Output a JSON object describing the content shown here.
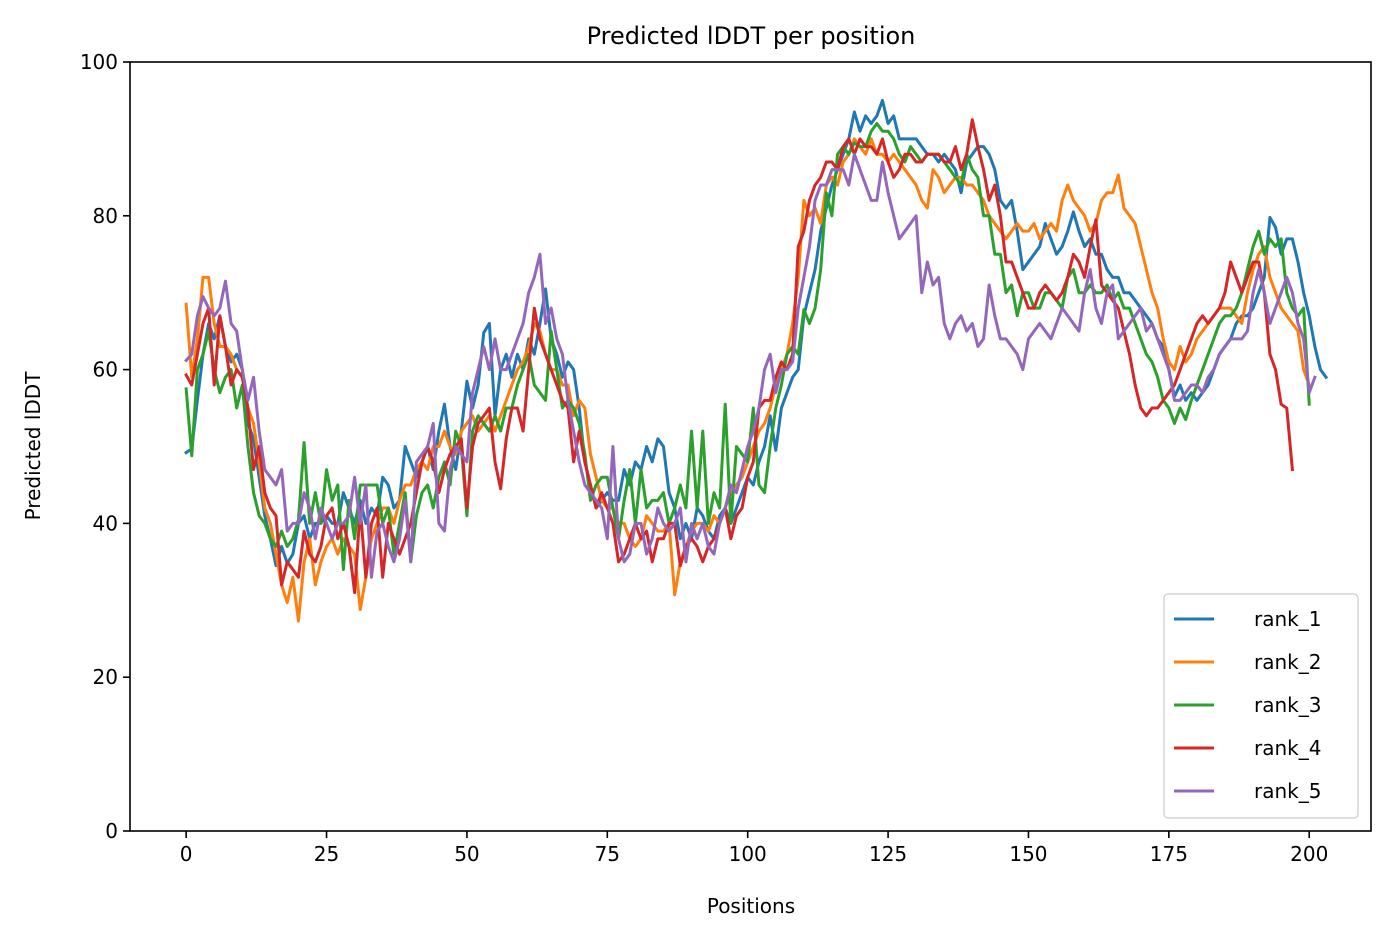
{
  "chart_data": {
    "type": "line",
    "title": "Predicted lDDT per position",
    "xlabel": "Positions",
    "ylabel": "Predicted lDDT",
    "xlim": [
      -10,
      211
    ],
    "ylim": [
      0,
      100
    ],
    "xticks": [
      0,
      25,
      50,
      75,
      100,
      125,
      150,
      175,
      200
    ],
    "yticks": [
      0,
      20,
      40,
      60,
      80,
      100
    ],
    "grid": false,
    "legend_position": "lower right",
    "x_start": 0,
    "series": [
      {
        "name": "rank_1",
        "color": "#1f77b4",
        "values": [
          49.2,
          49.7,
          56,
          62,
          66,
          64,
          67,
          63,
          61,
          62,
          60,
          53,
          51,
          46,
          41,
          38,
          34.5,
          37,
          34.8,
          36,
          40,
          41,
          38,
          40,
          40,
          41,
          40,
          40,
          44,
          42,
          40,
          43,
          40,
          42,
          41,
          46,
          45,
          42,
          43,
          50,
          48,
          46,
          48,
          50,
          47,
          52,
          55.5,
          50,
          47,
          52,
          58.5,
          55,
          58,
          64.8,
          66,
          54,
          60,
          62,
          59,
          62,
          60,
          64,
          62,
          66,
          70.5,
          64,
          62,
          59,
          61,
          60,
          55,
          48,
          45,
          42,
          43,
          44,
          43,
          43,
          47,
          45,
          48,
          47,
          50,
          48,
          51,
          50,
          44,
          42,
          38,
          40,
          38,
          42,
          41,
          39,
          38,
          41,
          42,
          40,
          42,
          44,
          46,
          45,
          48,
          50,
          54,
          49.5,
          55,
          57,
          59,
          60,
          67,
          70,
          73,
          78,
          81,
          84,
          86,
          88,
          90,
          93.5,
          91,
          93,
          92,
          93,
          95,
          92,
          93,
          90,
          90,
          90,
          90,
          89,
          88,
          88,
          87,
          88,
          87,
          86,
          83,
          87,
          88,
          89,
          89,
          88,
          86,
          82,
          81,
          82,
          78,
          73,
          74,
          75,
          76,
          79,
          77,
          75,
          76,
          78,
          80.5,
          78,
          76,
          77,
          75,
          75,
          73,
          72,
          72,
          70,
          70,
          69,
          68,
          67,
          66,
          64,
          63,
          60,
          56.5,
          58,
          56,
          57,
          56,
          57,
          58,
          60,
          62,
          63,
          64,
          66,
          67,
          67,
          68,
          70,
          72,
          79.8,
          78.5,
          75,
          77,
          77,
          74,
          70,
          67,
          63,
          60,
          59
        ]
      },
      {
        "name": "rank_2",
        "color": "#ff7f0e",
        "values": [
          68.5,
          59,
          64,
          72,
          72,
          66,
          63,
          63,
          62,
          60,
          59,
          55,
          53,
          48,
          42,
          40,
          36,
          32,
          29.7,
          33,
          27.3,
          35,
          38,
          32,
          35,
          37,
          38,
          36,
          38,
          37,
          36,
          28.8,
          33,
          38,
          40,
          42,
          42,
          40,
          43,
          45,
          45,
          47,
          48,
          47,
          50,
          50,
          52,
          50,
          49,
          52,
          53,
          54,
          52,
          53,
          54,
          52,
          54,
          56,
          58,
          60,
          61,
          63,
          66,
          65,
          62,
          60,
          60,
          58,
          58,
          54,
          56,
          55,
          49,
          46,
          43,
          42,
          42,
          40,
          40,
          38,
          37,
          38,
          41,
          40,
          39,
          39,
          40,
          30.7,
          35,
          37,
          39,
          40,
          40,
          39,
          41,
          40,
          42,
          44,
          45,
          46,
          48,
          50,
          52,
          53,
          55,
          58,
          60,
          62,
          66,
          72,
          82,
          80,
          81,
          79,
          84,
          85,
          84,
          87,
          88,
          90,
          89,
          88,
          90,
          88,
          88,
          87,
          88,
          87,
          86,
          85,
          84,
          82,
          81,
          86,
          85,
          83,
          84,
          85,
          85,
          84,
          84,
          83,
          82,
          80,
          79,
          78,
          77,
          78,
          79,
          78,
          78,
          79,
          77,
          78,
          79,
          78,
          82,
          84,
          82,
          81,
          80,
          78,
          79,
          82,
          83,
          83,
          85.3,
          81,
          80,
          79,
          76,
          73,
          70,
          68,
          64,
          61,
          60,
          63,
          61,
          62,
          64,
          65,
          66,
          67,
          68,
          68,
          68,
          67,
          66,
          70,
          73,
          75,
          76,
          72,
          70,
          68,
          67,
          66,
          65,
          60,
          58
        ]
      },
      {
        "name": "rank_3",
        "color": "#2ca02c",
        "values": [
          57.5,
          48.8,
          60,
          62,
          65,
          60,
          57,
          59,
          60,
          55,
          58,
          50,
          44,
          41,
          40,
          38,
          37,
          39,
          37,
          38,
          40.5,
          50.5,
          40,
          44,
          40,
          47,
          43,
          45,
          34,
          43,
          38,
          45,
          45,
          45,
          45,
          40,
          42,
          36,
          40,
          44,
          35,
          41,
          44,
          45,
          42,
          46,
          48,
          45,
          52,
          50,
          41,
          52,
          54,
          53,
          52,
          54,
          52,
          55,
          55,
          58,
          60,
          62,
          58,
          57,
          56,
          65,
          60,
          55,
          56,
          55,
          53,
          49,
          43,
          45,
          46,
          46,
          42,
          38,
          43,
          47,
          40,
          47,
          42,
          43,
          43,
          44,
          40,
          42,
          45,
          42,
          52,
          42,
          52,
          40,
          44,
          42,
          55.5,
          40,
          50,
          49,
          48,
          55,
          45,
          44,
          50,
          55,
          58,
          62,
          63,
          62,
          67.8,
          66,
          68,
          73,
          83,
          80,
          88,
          89,
          88,
          89.5,
          89,
          89,
          91,
          92,
          91,
          91,
          90,
          88,
          87,
          89,
          88,
          87,
          88,
          88,
          88,
          87,
          86,
          85,
          84,
          88,
          86,
          85,
          80,
          80,
          75,
          75,
          70,
          71,
          67,
          70,
          70,
          68,
          68,
          70,
          70,
          69,
          68,
          72,
          73,
          70,
          70,
          71,
          70,
          70,
          71,
          69,
          70,
          68,
          68,
          66,
          64,
          62,
          61,
          59,
          56,
          55,
          53,
          55,
          53.5,
          56,
          58,
          60,
          62,
          64,
          66,
          67,
          67,
          68,
          70,
          73,
          76,
          78,
          75,
          77,
          76,
          77,
          70,
          68,
          67,
          68,
          55.5
        ]
      },
      {
        "name": "rank_4",
        "color": "#d62728",
        "values": [
          59.3,
          58,
          62,
          66,
          68,
          58,
          67,
          63,
          58,
          60,
          59,
          55,
          47,
          50,
          44,
          42,
          41,
          32,
          35,
          34,
          33,
          39,
          36,
          35,
          37,
          41,
          42,
          38,
          40,
          37,
          31,
          42,
          33,
          40,
          42,
          33,
          40,
          38,
          36,
          38,
          40,
          44,
          48,
          50,
          48,
          44,
          47,
          49,
          50,
          51,
          42,
          50,
          53,
          54,
          55,
          48,
          44.5,
          51,
          55,
          55,
          52,
          60,
          68,
          64,
          62,
          60,
          58,
          56,
          55,
          48,
          52,
          48,
          45,
          42,
          44,
          42,
          40,
          35,
          36,
          38,
          40,
          38,
          39,
          35,
          38,
          38,
          40,
          40,
          34.5,
          37,
          38,
          37,
          35,
          37,
          38,
          40,
          42,
          38,
          41,
          42,
          46,
          48,
          55,
          56,
          56,
          59,
          61,
          60,
          62,
          76,
          78,
          82,
          84,
          85,
          87,
          87,
          86,
          89,
          90,
          88,
          90,
          89,
          89,
          88,
          90,
          87,
          85,
          86,
          88,
          88,
          87,
          87,
          88,
          88,
          88,
          87,
          87,
          89,
          86,
          88,
          92.5,
          89,
          86,
          82,
          84,
          80,
          74,
          74,
          72,
          70,
          68,
          68,
          70,
          71,
          70,
          69,
          70,
          72,
          75,
          74,
          72,
          76,
          79.5,
          71,
          70,
          69,
          68,
          65,
          62,
          58,
          55,
          54,
          55,
          55,
          56,
          57,
          58,
          60,
          62,
          64,
          66,
          67,
          66,
          67,
          68,
          70,
          74,
          72,
          70,
          72,
          74,
          74,
          70,
          62,
          60,
          55.5,
          55,
          47
        ]
      },
      {
        "name": "rank_5",
        "color": "#9467bd",
        "values": [
          61.2,
          62,
          67,
          69.5,
          68,
          67,
          68,
          71.5,
          66,
          65,
          60,
          56,
          59,
          52,
          47,
          46,
          45,
          47,
          39,
          40,
          40,
          44,
          42,
          38,
          42,
          40,
          38,
          40,
          40,
          41,
          46,
          40,
          45,
          33,
          39,
          40,
          37,
          35,
          38,
          43,
          35,
          48,
          49,
          50,
          53,
          40,
          39,
          47,
          50,
          49,
          48,
          57,
          60,
          63,
          60,
          64,
          60,
          60,
          62,
          64,
          66,
          70,
          72,
          75,
          66,
          68,
          64,
          62,
          56,
          52,
          48,
          45,
          44,
          43,
          42,
          38,
          50,
          38,
          35,
          36,
          40,
          40,
          36,
          38,
          42,
          40,
          39,
          40,
          42,
          35,
          40,
          38,
          40,
          37,
          36,
          40,
          42,
          45,
          44,
          47,
          50,
          52,
          55,
          60,
          62,
          57,
          60,
          60,
          61,
          68,
          72,
          76,
          82,
          84,
          84,
          86,
          86,
          86,
          84,
          88,
          86,
          84,
          82,
          82,
          87,
          83,
          80,
          77,
          78,
          79,
          80,
          70,
          74,
          71,
          72,
          66,
          64,
          66,
          67,
          65,
          66,
          63,
          64,
          71,
          67,
          64,
          64,
          63,
          62,
          60,
          64,
          65,
          66,
          65,
          64,
          66,
          68,
          67,
          66,
          65,
          70,
          73,
          68,
          66,
          70,
          71,
          64,
          65,
          66,
          67,
          68,
          65,
          66,
          64,
          62,
          60,
          56,
          56,
          57,
          58,
          58,
          57,
          59,
          60,
          62,
          63,
          64,
          64,
          64,
          65,
          70,
          73,
          70,
          66,
          68,
          70,
          72,
          70,
          66,
          64,
          57,
          59
        ]
      }
    ]
  }
}
